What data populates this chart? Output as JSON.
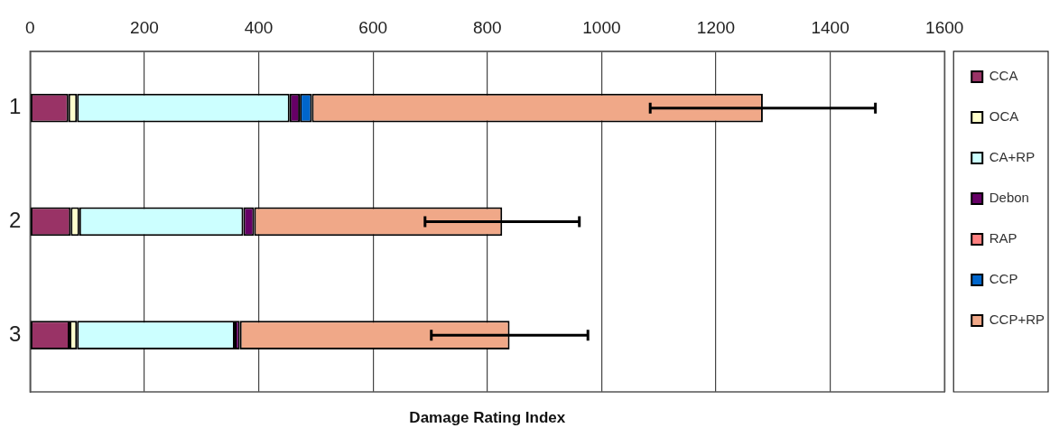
{
  "chart_data": {
    "type": "bar",
    "orientation": "horizontal",
    "stacked": true,
    "xlabel": "Damage Rating Index",
    "categories": [
      "1",
      "2",
      "3"
    ],
    "xlim": [
      0,
      1600
    ],
    "xticks": [
      0,
      200,
      400,
      600,
      800,
      1000,
      1200,
      1400,
      1600
    ],
    "grid": "x",
    "legend": "right",
    "series": [
      {
        "name": "CCA",
        "color": "#993366",
        "values": [
          67,
          71,
          69
        ]
      },
      {
        "name": "OCA",
        "color": "#ffffcc",
        "values": [
          15,
          15,
          13
        ]
      },
      {
        "name": "CA+RP",
        "color": "#ccffff",
        "values": [
          372,
          287,
          276
        ]
      },
      {
        "name": "Debon",
        "color": "#660066",
        "values": [
          18,
          19,
          9
        ]
      },
      {
        "name": "RAP",
        "color": "#ff8080",
        "values": [
          0,
          0,
          0
        ]
      },
      {
        "name": "CCP",
        "color": "#0066cc",
        "values": [
          21,
          0,
          0
        ]
      },
      {
        "name": "CCP+RP",
        "color": "#f0a888",
        "values": [
          789,
          434,
          472
        ],
        "errors": [
          197,
          135,
          137
        ]
      }
    ]
  }
}
